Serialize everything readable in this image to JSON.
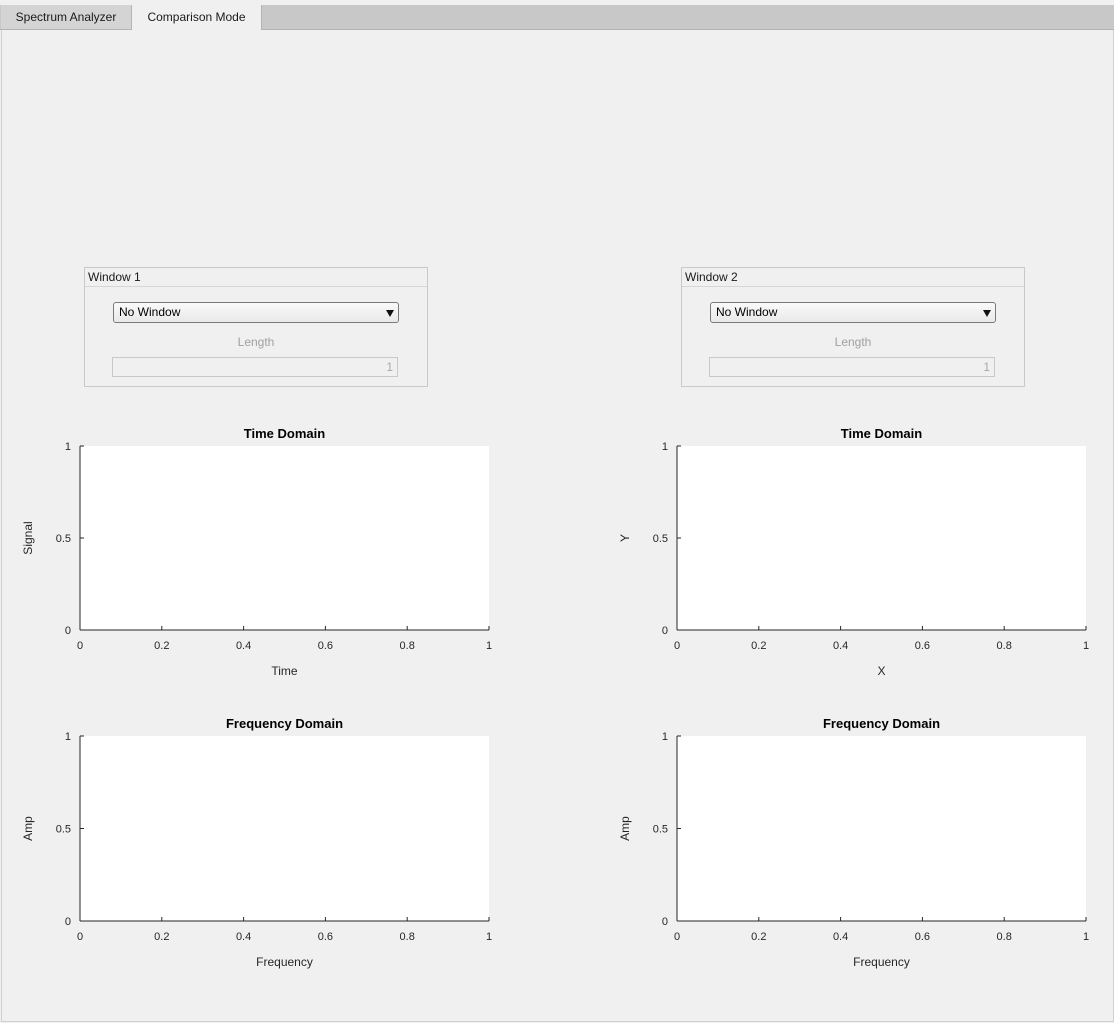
{
  "tabs": [
    "Spectrum Analyzer",
    "Comparison Mode"
  ],
  "active_tab": "Comparison Mode",
  "panels": [
    {
      "title": "Window 1",
      "dropdown_value": "No Window",
      "length_label": "Length",
      "length_value": "1"
    },
    {
      "title": "Window 2",
      "dropdown_value": "No Window",
      "length_label": "Length",
      "length_value": "1"
    }
  ],
  "chart_data": [
    {
      "type": "line",
      "title": "Time Domain",
      "xlabel": "Time",
      "ylabel": "Signal",
      "xlim": [
        0,
        1
      ],
      "ylim": [
        0,
        1
      ],
      "xticks": [
        "0",
        "0.2",
        "0.4",
        "0.6",
        "0.8",
        "1"
      ],
      "yticks": [
        "0",
        "0.5",
        "1"
      ],
      "series": []
    },
    {
      "type": "line",
      "title": "Time Domain",
      "xlabel": "X",
      "ylabel": "Y",
      "xlim": [
        0,
        1
      ],
      "ylim": [
        0,
        1
      ],
      "xticks": [
        "0",
        "0.2",
        "0.4",
        "0.6",
        "0.8",
        "1"
      ],
      "yticks": [
        "0",
        "0.5",
        "1"
      ],
      "series": []
    },
    {
      "type": "line",
      "title": "Frequency Domain",
      "xlabel": "Frequency",
      "ylabel": "Amp",
      "xlim": [
        0,
        1
      ],
      "ylim": [
        0,
        1
      ],
      "xticks": [
        "0",
        "0.2",
        "0.4",
        "0.6",
        "0.8",
        "1"
      ],
      "yticks": [
        "0",
        "0.5",
        "1"
      ],
      "series": []
    },
    {
      "type": "line",
      "title": "Frequency Domain",
      "xlabel": "Frequency",
      "ylabel": "Amp",
      "xlim": [
        0,
        1
      ],
      "ylim": [
        0,
        1
      ],
      "xticks": [
        "0",
        "0.2",
        "0.4",
        "0.6",
        "0.8",
        "1"
      ],
      "yticks": [
        "0",
        "0.5",
        "1"
      ],
      "series": []
    }
  ]
}
